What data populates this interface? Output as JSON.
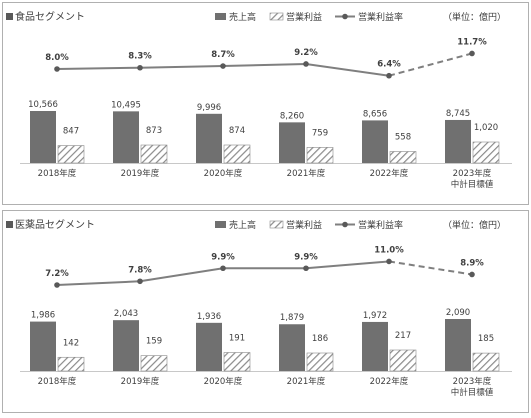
{
  "legend": {
    "sales": "売上高",
    "profit": "営業利益",
    "margin": "営業利益率",
    "unit": "（単位：億円）"
  },
  "colors": {
    "bar": "#707070",
    "hatch": "#8a8a8a",
    "line": "#7f7f7f",
    "border": "#b0b0b0"
  },
  "chart_data": [
    {
      "type": "bar",
      "title": "食品セグメント",
      "categories": [
        "2018年度",
        "2019年度",
        "2020年度",
        "2021年度",
        "2022年度",
        "2023年度\n中計目標値"
      ],
      "series": [
        {
          "name": "売上高",
          "values": [
            10566,
            10495,
            9996,
            8260,
            8656,
            8745
          ],
          "labels": [
            "10,566",
            "10,495",
            "9,996",
            "8,260",
            "8,656",
            "8,745"
          ]
        },
        {
          "name": "営業利益",
          "values": [
            847,
            873,
            874,
            759,
            558,
            1020
          ],
          "labels": [
            "847",
            "873",
            "874",
            "759",
            "558",
            "1,020"
          ]
        },
        {
          "name": "営業利益率",
          "values": [
            8.0,
            8.3,
            8.7,
            9.2,
            6.4,
            11.7
          ],
          "labels": [
            "8.0%",
            "8.3%",
            "8.7%",
            "9.2%",
            "6.4%",
            "11.7%"
          ]
        }
      ]
    },
    {
      "type": "bar",
      "title": "医薬品セグメント",
      "categories": [
        "2018年度",
        "2019年度",
        "2020年度",
        "2021年度",
        "2022年度",
        "2023年度\n中計目標値"
      ],
      "series": [
        {
          "name": "売上高",
          "values": [
            1986,
            2043,
            1936,
            1879,
            1972,
            2090
          ],
          "labels": [
            "1,986",
            "2,043",
            "1,936",
            "1,879",
            "1,972",
            "2,090"
          ]
        },
        {
          "name": "営業利益",
          "values": [
            142,
            159,
            191,
            186,
            217,
            185
          ],
          "labels": [
            "142",
            "159",
            "191",
            "186",
            "217",
            "185"
          ]
        },
        {
          "name": "営業利益率",
          "values": [
            7.2,
            7.8,
            9.9,
            9.9,
            11.0,
            8.9
          ],
          "labels": [
            "7.2%",
            "7.8%",
            "9.9%",
            "9.9%",
            "11.0%",
            "8.9%"
          ]
        }
      ]
    }
  ]
}
